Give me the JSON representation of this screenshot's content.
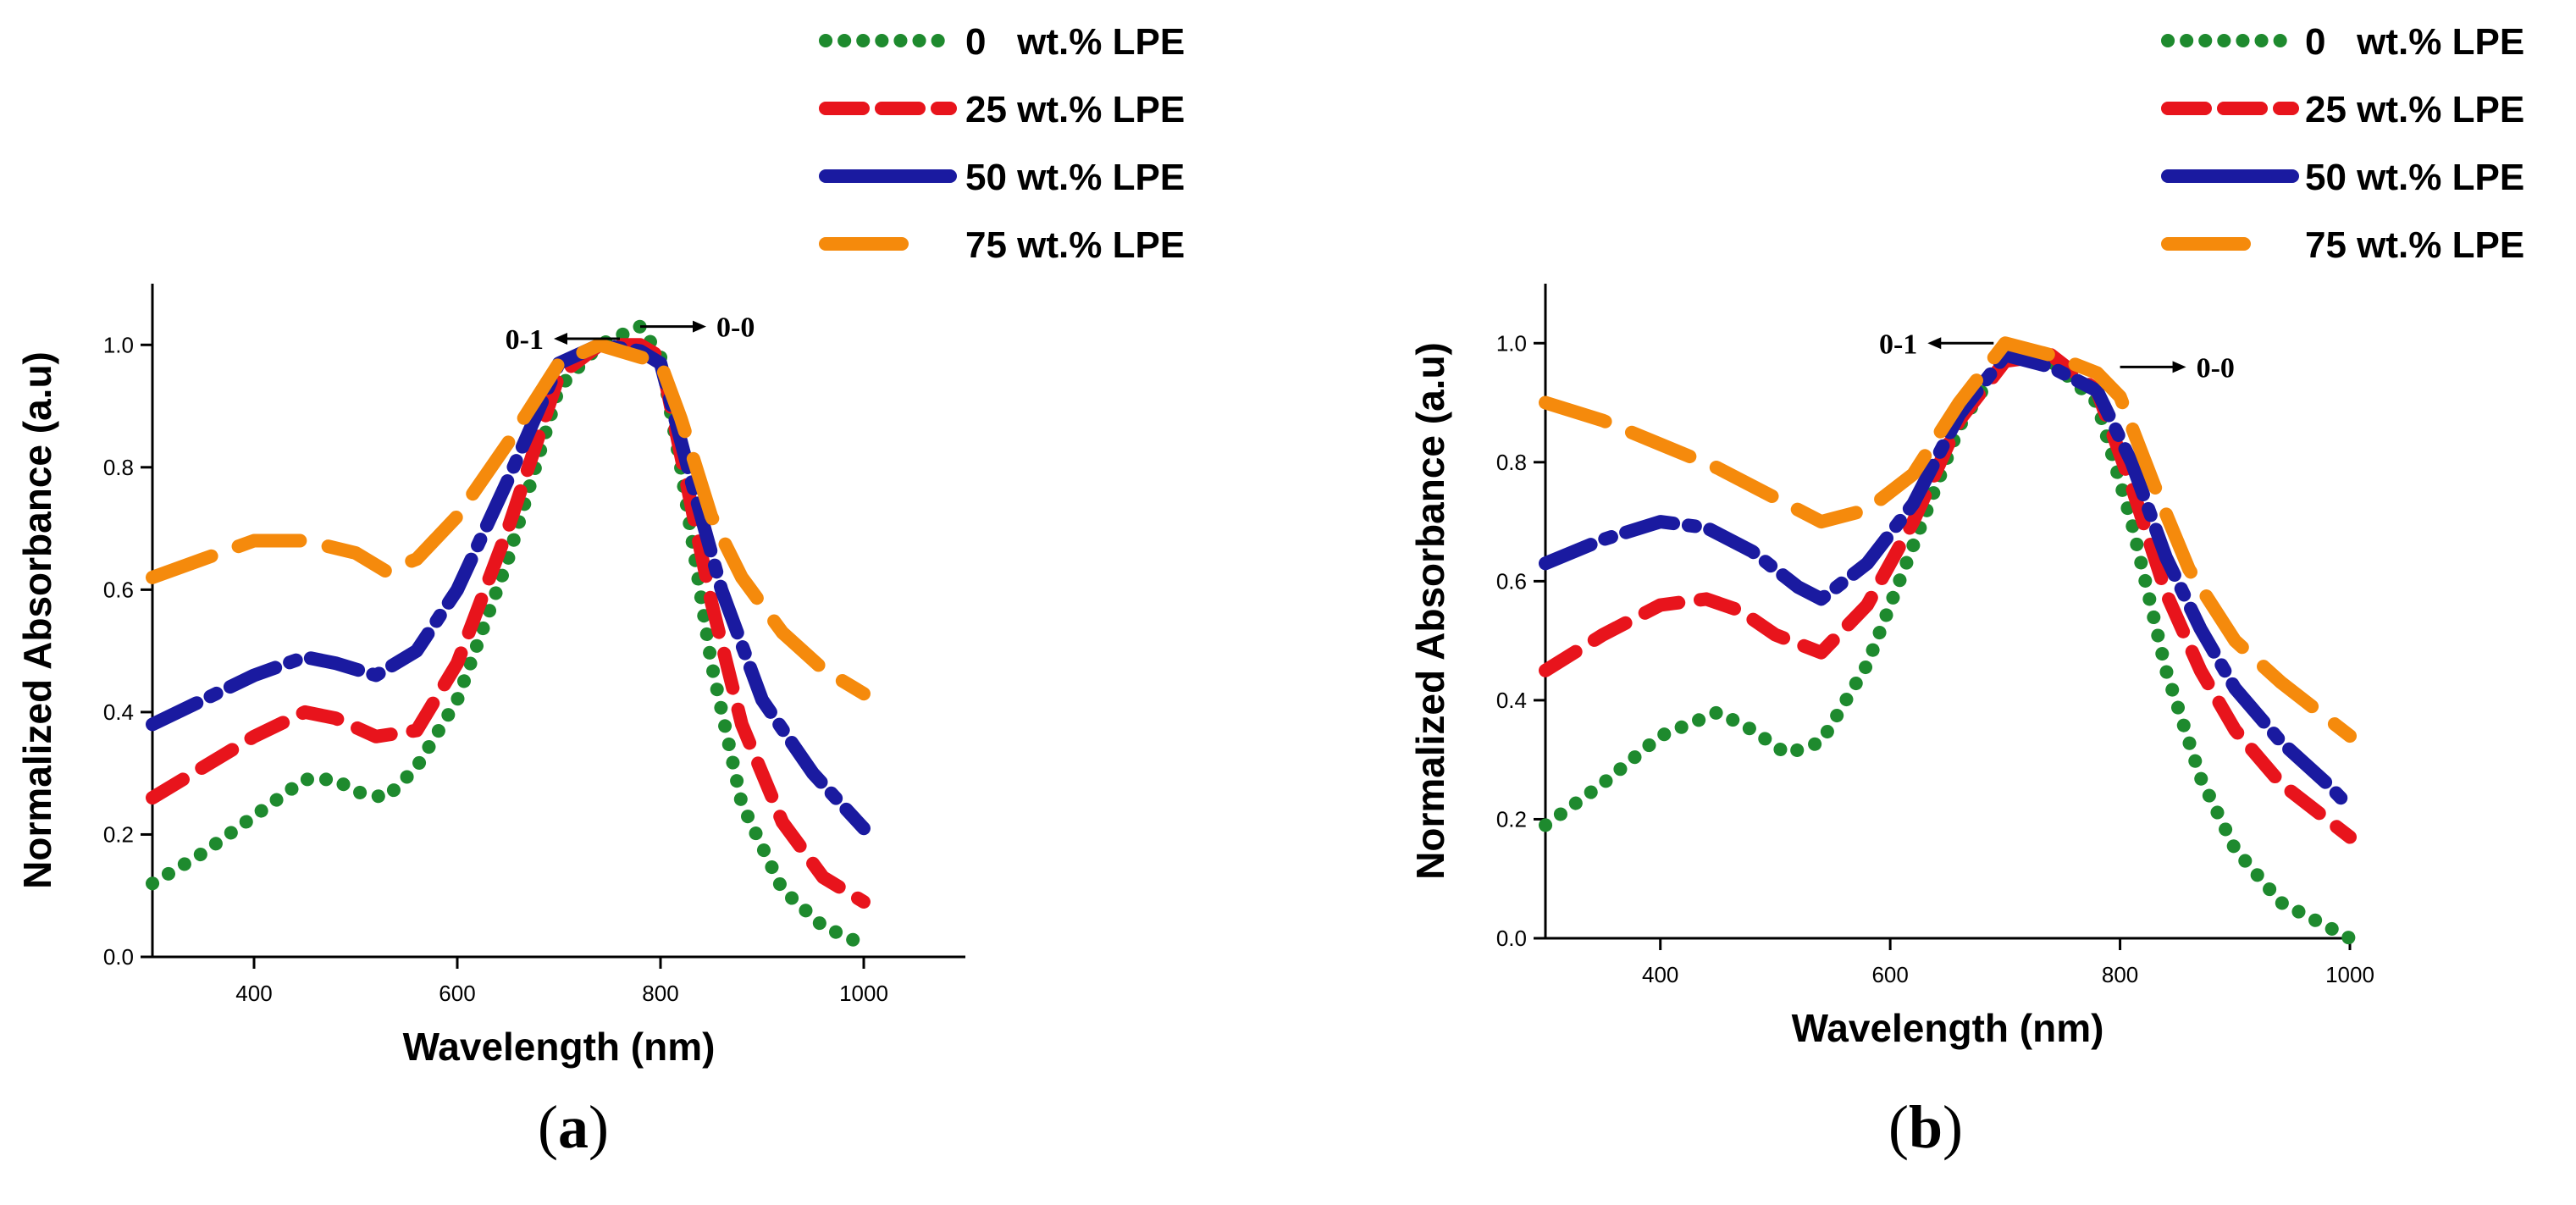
{
  "chart_data": [
    {
      "type": "line",
      "panel": "a",
      "xlabel": "Wavelength (nm)",
      "ylabel": "Normalized Absorbance (a.u)",
      "xlim": [
        300,
        1100
      ],
      "ylim": [
        0,
        1.1
      ],
      "xticks": [
        400,
        600,
        800,
        1000
      ],
      "yticks": [
        0.0,
        0.2,
        0.4,
        0.6,
        0.8,
        1.0
      ],
      "grid": false,
      "legend_position": "top-right",
      "annotations": [
        {
          "text": "0-1",
          "x": 760,
          "y": 1.01,
          "direction": "left"
        },
        {
          "text": "0-0",
          "x": 780,
          "y": 1.03,
          "direction": "right"
        }
      ],
      "series": [
        {
          "name": "0   wt.% LPE",
          "color": "#1e8a2e",
          "style": "dotted",
          "x": [
            300,
            350,
            400,
            450,
            480,
            500,
            530,
            560,
            600,
            650,
            700,
            740,
            780,
            800,
            820,
            850,
            880,
            920,
            960,
            1000
          ],
          "y": [
            0.12,
            0.17,
            0.23,
            0.29,
            0.29,
            0.27,
            0.26,
            0.31,
            0.42,
            0.65,
            0.93,
            1.0,
            1.03,
            0.98,
            0.8,
            0.48,
            0.25,
            0.11,
            0.05,
            0.02
          ]
        },
        {
          "name": "25 wt.% LPE",
          "color": "#e8141c",
          "style": "dashed",
          "x": [
            300,
            350,
            400,
            450,
            480,
            520,
            560,
            600,
            650,
            700,
            740,
            780,
            800,
            820,
            850,
            880,
            920,
            960,
            1000
          ],
          "y": [
            0.26,
            0.31,
            0.36,
            0.4,
            0.39,
            0.36,
            0.37,
            0.48,
            0.7,
            0.95,
            1.0,
            1.0,
            0.98,
            0.82,
            0.58,
            0.38,
            0.22,
            0.13,
            0.09
          ]
        },
        {
          "name": "50 wt.% LPE",
          "color": "#1a1aa0",
          "style": "dashdot",
          "x": [
            300,
            350,
            400,
            450,
            480,
            520,
            560,
            600,
            650,
            700,
            740,
            780,
            800,
            830,
            860,
            900,
            950,
            1000
          ],
          "y": [
            0.38,
            0.42,
            0.46,
            0.49,
            0.48,
            0.46,
            0.5,
            0.6,
            0.78,
            0.97,
            1.0,
            0.99,
            0.97,
            0.78,
            0.6,
            0.42,
            0.3,
            0.21
          ]
        },
        {
          "name": "75 wt.% LPE",
          "color": "#f58a0c",
          "style": "longdash",
          "x": [
            300,
            350,
            400,
            450,
            500,
            530,
            560,
            600,
            650,
            700,
            740,
            780,
            800,
            820,
            850,
            880,
            920,
            960,
            1000
          ],
          "y": [
            0.62,
            0.65,
            0.68,
            0.68,
            0.66,
            0.63,
            0.65,
            0.72,
            0.84,
            0.97,
            1.0,
            0.98,
            0.97,
            0.88,
            0.72,
            0.62,
            0.53,
            0.47,
            0.43
          ]
        }
      ]
    },
    {
      "type": "line",
      "panel": "b",
      "xlabel": "Wavelength (nm)",
      "ylabel": "Normalized Absorbance (a.u)",
      "xlim": [
        300,
        1000
      ],
      "ylim": [
        0,
        1.1
      ],
      "xticks": [
        400,
        600,
        800,
        1000
      ],
      "yticks": [
        0.0,
        0.2,
        0.4,
        0.6,
        0.8,
        1.0
      ],
      "grid": false,
      "legend_position": "top-right",
      "annotations": [
        {
          "text": "0-1",
          "x": 690,
          "y": 1.0,
          "direction": "left"
        },
        {
          "text": "0-0",
          "x": 800,
          "y": 0.96,
          "direction": "right"
        }
      ],
      "series": [
        {
          "name": "0   wt.% LPE",
          "color": "#1e8a2e",
          "style": "dotted",
          "x": [
            300,
            350,
            400,
            450,
            480,
            510,
            540,
            580,
            620,
            660,
            700,
            740,
            780,
            810,
            840,
            870,
            900,
            940,
            980,
            1000
          ],
          "y": [
            0.19,
            0.26,
            0.34,
            0.38,
            0.35,
            0.31,
            0.33,
            0.46,
            0.66,
            0.86,
            0.98,
            0.97,
            0.9,
            0.7,
            0.45,
            0.27,
            0.15,
            0.06,
            0.02,
            0.0
          ]
        },
        {
          "name": "25 wt.% LPE",
          "color": "#e8141c",
          "style": "dashed",
          "x": [
            300,
            350,
            400,
            440,
            470,
            500,
            540,
            580,
            620,
            660,
            700,
            740,
            780,
            810,
            840,
            870,
            900,
            940,
            980,
            1000
          ],
          "y": [
            0.45,
            0.51,
            0.56,
            0.57,
            0.55,
            0.51,
            0.48,
            0.56,
            0.7,
            0.87,
            0.97,
            0.98,
            0.92,
            0.76,
            0.58,
            0.45,
            0.35,
            0.26,
            0.2,
            0.17
          ]
        },
        {
          "name": "50 wt.% LPE",
          "color": "#1a1aa0",
          "style": "dashdot",
          "x": [
            300,
            350,
            400,
            440,
            480,
            520,
            540,
            580,
            620,
            660,
            700,
            740,
            780,
            810,
            840,
            870,
            900,
            940,
            980,
            1000
          ],
          "y": [
            0.63,
            0.67,
            0.7,
            0.69,
            0.65,
            0.59,
            0.57,
            0.63,
            0.73,
            0.88,
            0.98,
            0.96,
            0.92,
            0.8,
            0.64,
            0.52,
            0.42,
            0.33,
            0.26,
            0.22
          ]
        },
        {
          "name": "75 wt.% LPE",
          "color": "#f58a0c",
          "style": "longdash",
          "x": [
            300,
            350,
            400,
            450,
            500,
            540,
            580,
            620,
            660,
            700,
            740,
            780,
            800,
            830,
            860,
            900,
            940,
            980,
            1000
          ],
          "y": [
            0.9,
            0.87,
            0.83,
            0.79,
            0.74,
            0.7,
            0.72,
            0.78,
            0.9,
            1.0,
            0.98,
            0.95,
            0.91,
            0.76,
            0.62,
            0.5,
            0.43,
            0.37,
            0.34
          ]
        }
      ]
    }
  ],
  "labels": {
    "panel_a": "a",
    "panel_b": "b",
    "paren_open": "(",
    "paren_close": ")"
  }
}
